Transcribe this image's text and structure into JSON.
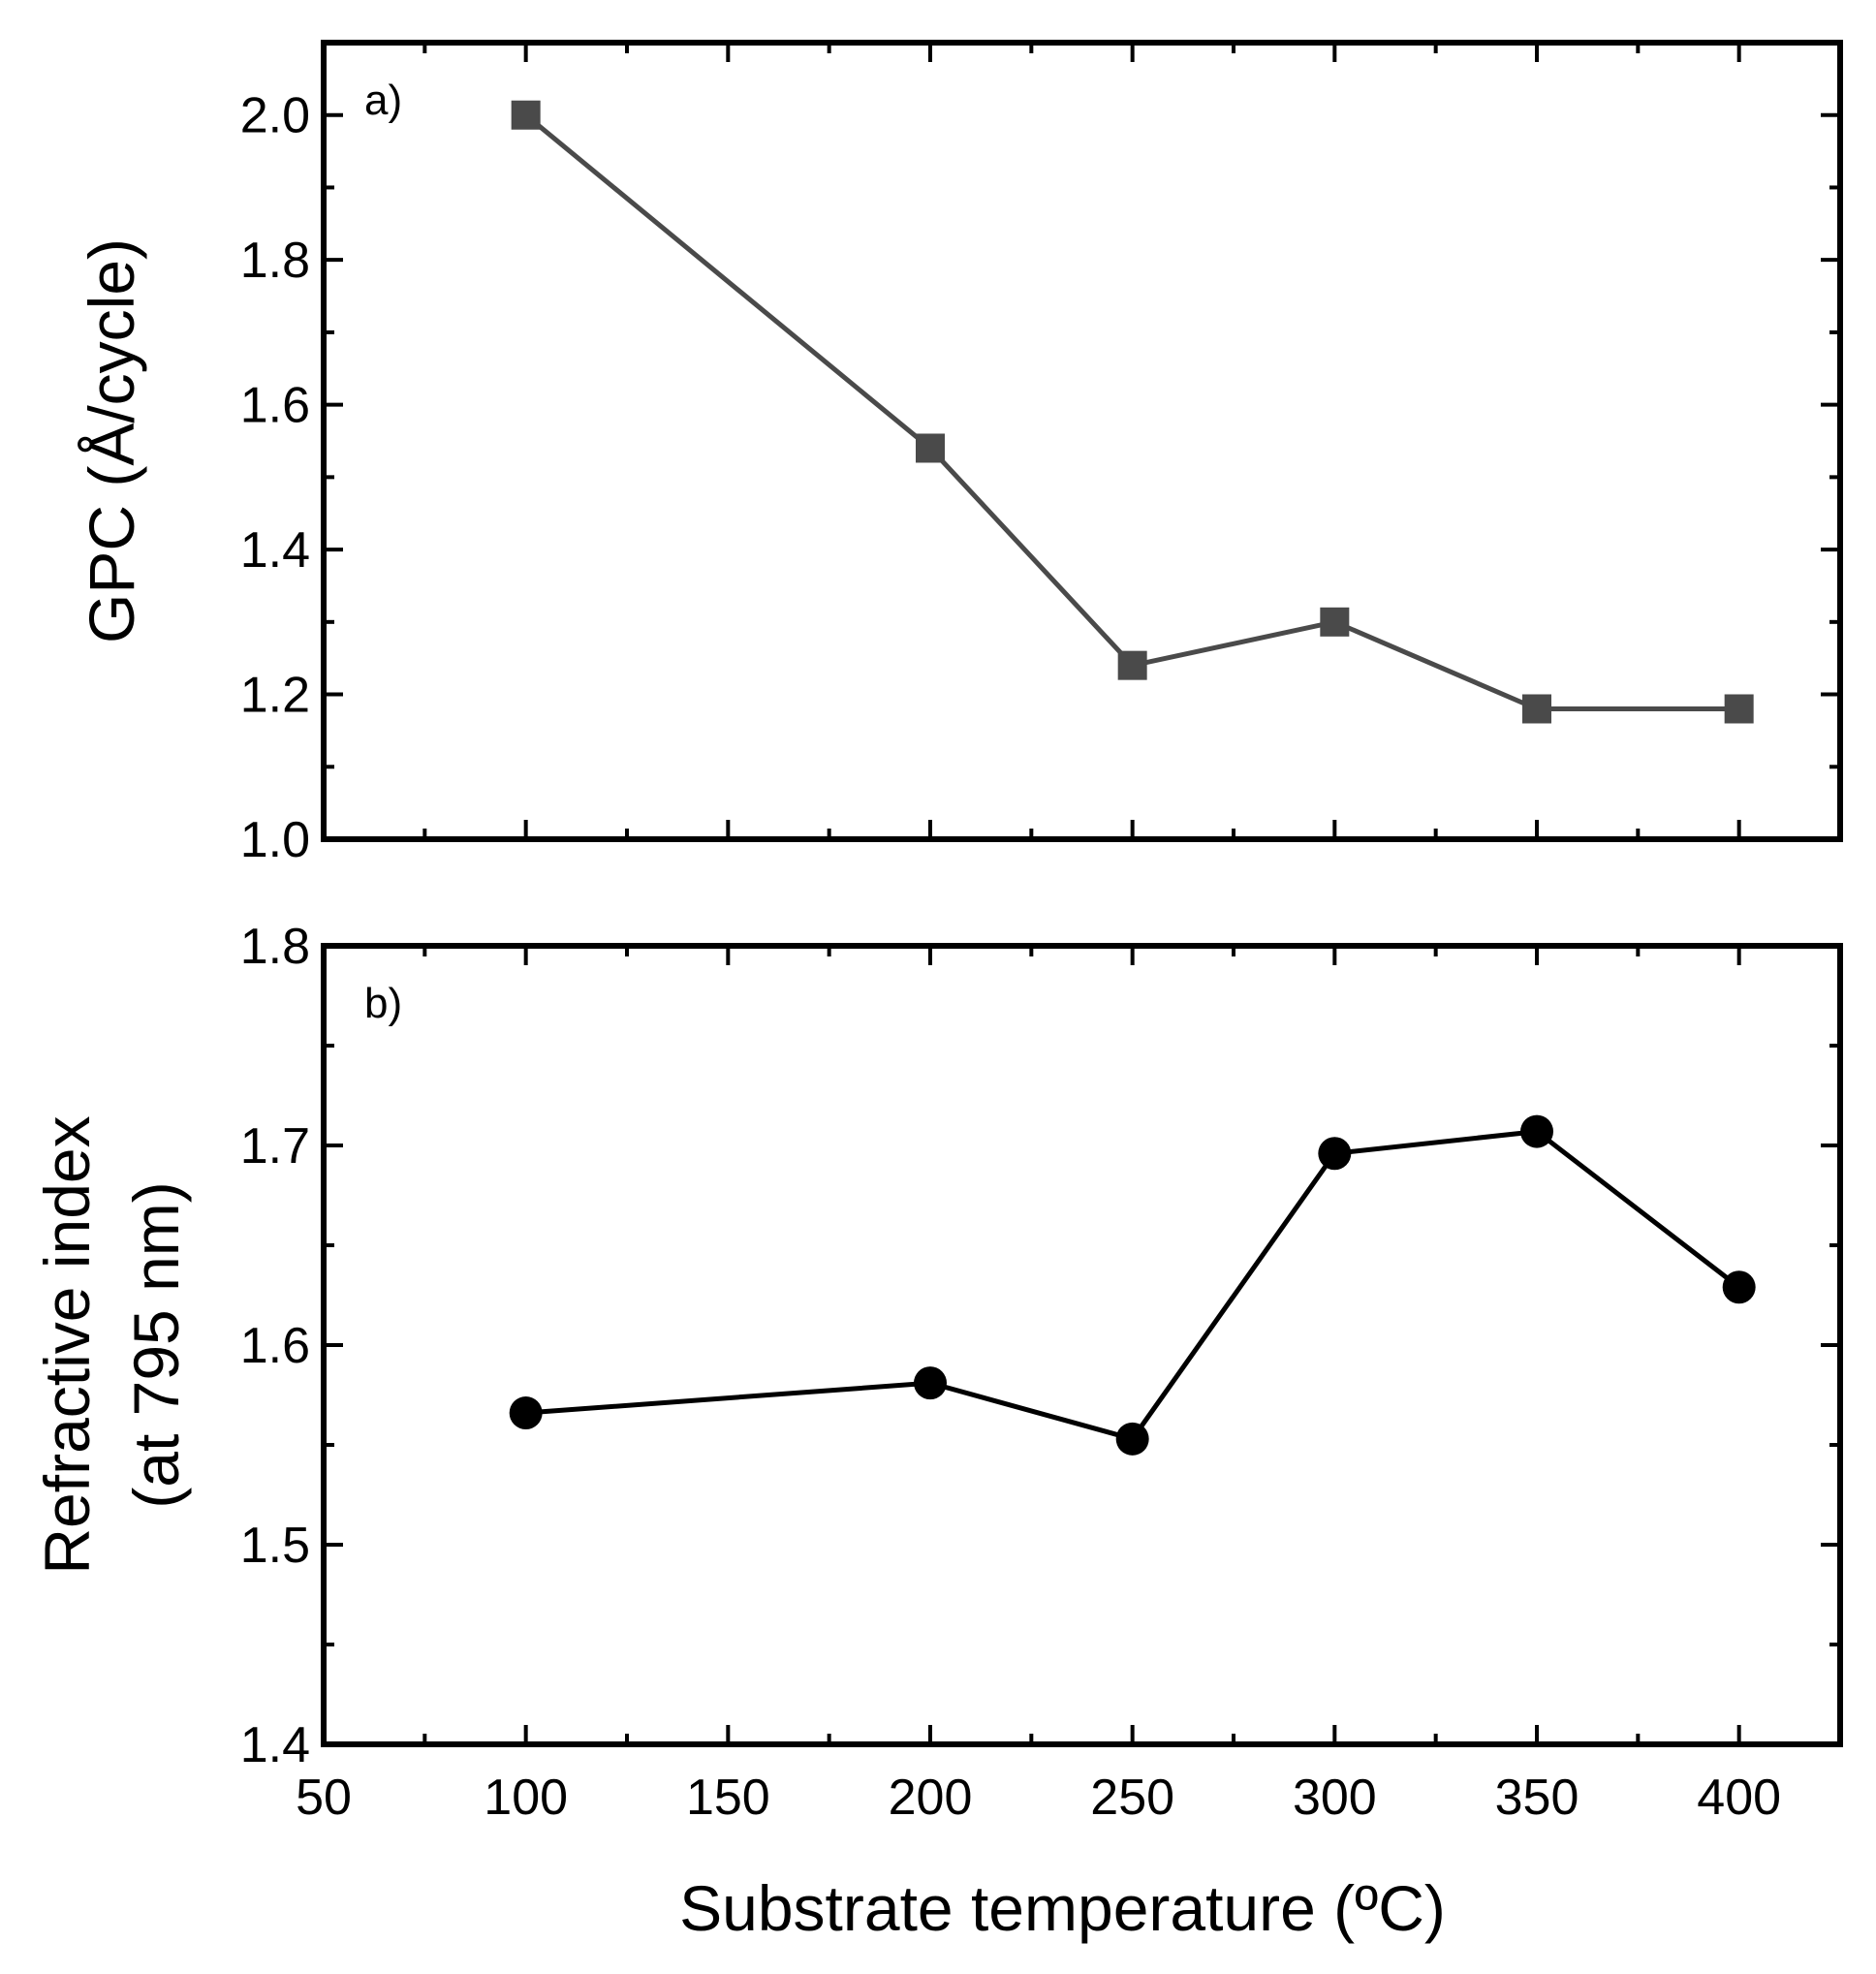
{
  "chart_data": [
    {
      "type": "line",
      "panel_label": "a)",
      "ylabel": "GPC (Å/cycle)",
      "xlim": [
        50,
        425
      ],
      "ylim": [
        1.0,
        2.1
      ],
      "yticks": [
        1.0,
        1.2,
        1.4,
        1.6,
        1.8,
        2.0
      ],
      "ytick_labels": [
        "1.0",
        "1.2",
        "1.4",
        "1.6",
        "1.8",
        "2.0"
      ],
      "series": [
        {
          "marker": "square",
          "color": "#4a4a4a",
          "x": [
            100,
            200,
            250,
            300,
            350,
            400
          ],
          "y": [
            2.0,
            1.54,
            1.24,
            1.3,
            1.18,
            1.18
          ]
        }
      ]
    },
    {
      "type": "line",
      "panel_label": "b)",
      "ylabel_lines": [
        "Refractive index",
        "(at 795 nm)"
      ],
      "xlabel": "Substrate temperature (ºC)",
      "xlim": [
        50,
        425
      ],
      "ylim": [
        1.4,
        1.8
      ],
      "yticks": [
        1.4,
        1.5,
        1.6,
        1.7,
        1.8
      ],
      "ytick_labels": [
        "1.4",
        "1.5",
        "1.6",
        "1.7",
        "1.8"
      ],
      "xticks": [
        50,
        100,
        150,
        200,
        250,
        300,
        350,
        400
      ],
      "xtick_labels": [
        "50",
        "100",
        "150",
        "200",
        "250",
        "300",
        "350",
        "400"
      ],
      "series": [
        {
          "marker": "circle",
          "color": "#000000",
          "x": [
            100,
            200,
            250,
            300,
            350,
            400
          ],
          "y": [
            1.566,
            1.581,
            1.553,
            1.696,
            1.707,
            1.629
          ]
        }
      ]
    }
  ]
}
